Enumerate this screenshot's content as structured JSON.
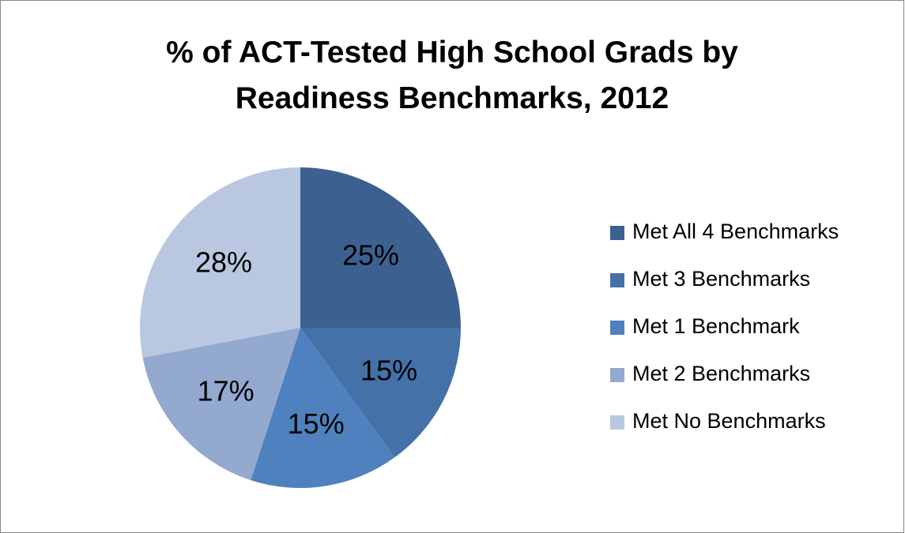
{
  "chart_data": {
    "type": "pie",
    "title": "% of ACT-Tested High School Grads by Readiness Benchmarks, 2012",
    "categories": [
      "Met All 4 Benchmarks",
      "Met 3 Benchmarks",
      "Met 1 Benchmark",
      "Met 2 Benchmarks",
      "Met No Benchmarks"
    ],
    "values": [
      25,
      15,
      15,
      17,
      28
    ],
    "value_labels": [
      "25%",
      "15%",
      "15%",
      "17%",
      "28%"
    ],
    "colors": [
      "#3c6191",
      "#4371a8",
      "#4e81bd",
      "#93a9cf",
      "#bac7e0"
    ],
    "legend": "right"
  }
}
